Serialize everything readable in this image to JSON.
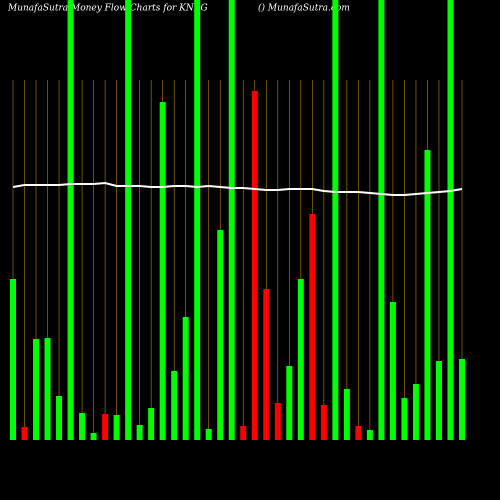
{
  "chart_data": {
    "type": "bar",
    "title": "MunafaSutra  Money Flow  Charts for KNRG",
    "subtitle": "() MunafaSutra.com",
    "categories": [
      null,
      null,
      null,
      null,
      null,
      null,
      null,
      null,
      null,
      null,
      null,
      null,
      null,
      null,
      null,
      null,
      null,
      null,
      null,
      null,
      null,
      null,
      null,
      null,
      null,
      null,
      null,
      null,
      null,
      null,
      null,
      null,
      null,
      null,
      null,
      null,
      null,
      null,
      null,
      null
    ],
    "values": [
      161,
      13,
      101,
      102,
      44,
      440,
      27,
      7,
      26,
      25,
      440,
      15,
      32,
      338,
      69,
      123,
      440,
      11,
      210,
      440,
      14,
      349,
      151,
      37,
      74,
      161,
      226,
      35,
      440,
      51,
      14,
      10,
      440,
      138,
      42,
      56,
      290,
      79,
      440,
      81
    ],
    "colors": [
      "#00ff00",
      "#ff0000",
      "#00ff00",
      "#00ff00",
      "#00ff00",
      "#00ff00",
      "#00ff00",
      "#00ff00",
      "#ff0000",
      "#00ff00",
      "#00ff00",
      "#00ff00",
      "#00ff00",
      "#00ff00",
      "#00ff00",
      "#00ff00",
      "#00ff00",
      "#00ff00",
      "#00ff00",
      "#00ff00",
      "#ff0000",
      "#ff0000",
      "#ff0000",
      "#ff0000",
      "#00ff00",
      "#00ff00",
      "#ff0000",
      "#ff0000",
      "#00ff00",
      "#00ff00",
      "#ff0000",
      "#00ff00",
      "#00ff00",
      "#00ff00",
      "#00ff00",
      "#00ff00",
      "#00ff00",
      "#00ff00",
      "#00ff00",
      "#00ff00"
    ],
    "line": {
      "color": "#ffffff",
      "values": [
        253,
        255,
        255,
        255,
        255,
        256,
        256,
        256,
        257,
        254,
        254,
        254,
        253,
        253,
        254,
        254,
        253,
        254,
        253,
        252,
        252,
        251,
        250,
        250,
        251,
        251,
        251,
        249,
        248,
        248,
        248,
        247,
        246,
        245,
        245,
        246,
        247,
        248,
        249,
        251
      ]
    },
    "grid_color": "#b8860b",
    "ylim": [
      0,
      440
    ]
  }
}
